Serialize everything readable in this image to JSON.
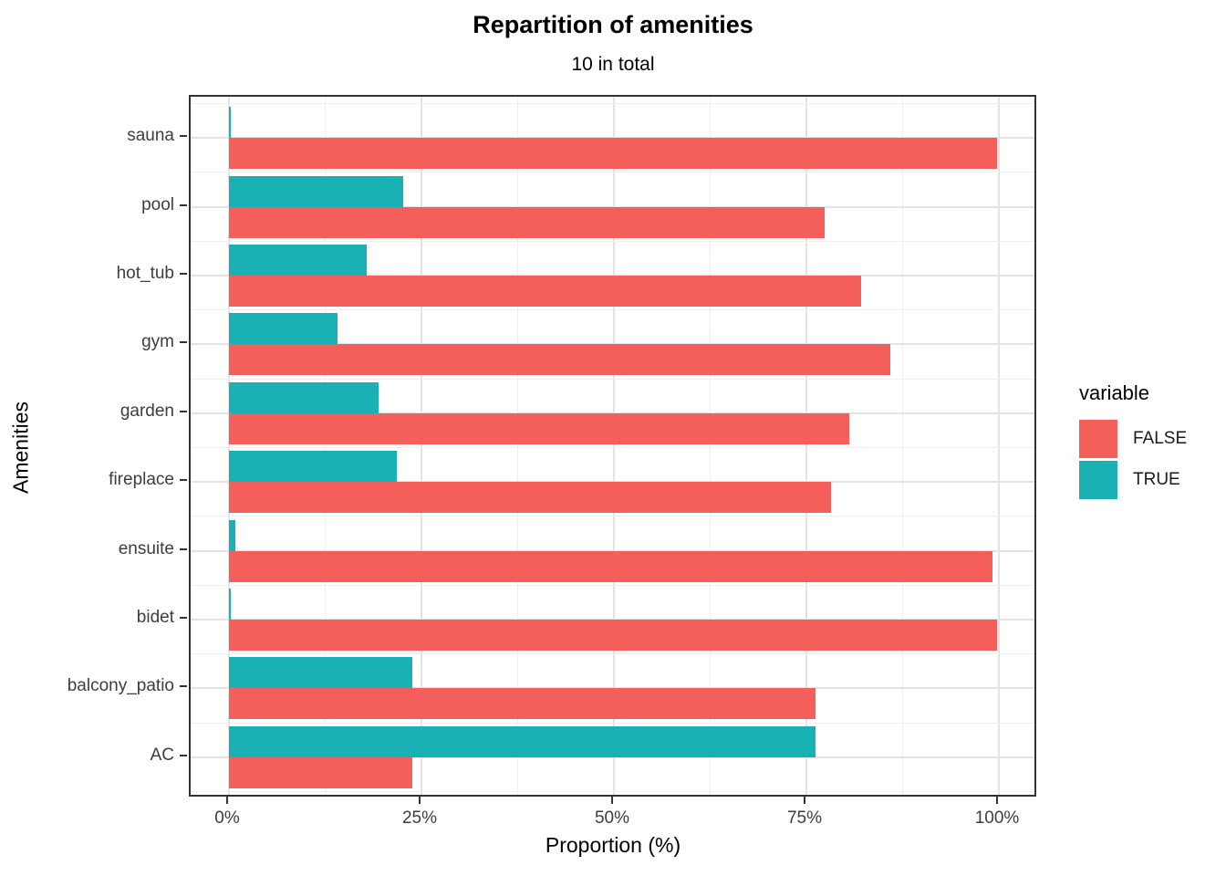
{
  "title": "Repartition of amenities",
  "subtitle": "10 in total",
  "colors": {
    "false_color": "#F45F5B",
    "true_color": "#1AB1B4",
    "grid_major": "#E3E3E3",
    "grid_minor": "#EFEFEF",
    "axis_text": "#3d3d3d",
    "panel_border": "#333333"
  },
  "legend": {
    "title": "variable",
    "entries": [
      {
        "label": "FALSE",
        "color_key": "false_color"
      },
      {
        "label": "TRUE",
        "color_key": "true_color"
      }
    ]
  },
  "chart_data": {
    "type": "bar",
    "orientation": "horizontal",
    "title": "Repartition of amenities",
    "subtitle": "10 in total",
    "xlabel": "Proportion (%)",
    "ylabel": "Amenities",
    "xlim": [
      0,
      100
    ],
    "x_tick_values": [
      0,
      25,
      50,
      75,
      100
    ],
    "x_tick_labels": [
      "0%",
      "25%",
      "50%",
      "75%",
      "100%"
    ],
    "x_minor_values": [
      12.5,
      37.5,
      62.5,
      87.5
    ],
    "grid": true,
    "legend_position": "right",
    "categories_top_to_bottom": [
      "sauna",
      "pool",
      "hot_tub",
      "gym",
      "garden",
      "fireplace",
      "ensuite",
      "bidet",
      "balcony_patio",
      "AC"
    ],
    "series": [
      {
        "name": "FALSE",
        "color_key": "false_color",
        "values": [
          99.8,
          77.4,
          82.1,
          85.9,
          80.6,
          78.2,
          99.2,
          99.8,
          76.2,
          23.8
        ]
      },
      {
        "name": "TRUE",
        "color_key": "true_color",
        "values": [
          0.2,
          22.6,
          17.9,
          14.1,
          19.4,
          21.8,
          0.8,
          0.2,
          23.8,
          76.2
        ]
      }
    ]
  }
}
